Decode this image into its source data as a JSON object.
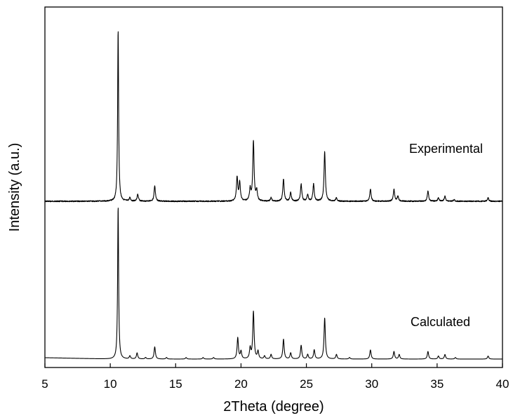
{
  "chart_data": {
    "type": "line",
    "title": "",
    "xlabel": "2Theta (degree)",
    "ylabel": "Intensity (a.u.)",
    "xlim": [
      5,
      40
    ],
    "xticks": [
      5,
      10,
      15,
      20,
      25,
      30,
      35,
      40
    ],
    "yticks_shown": false,
    "grid": false,
    "legend": "none",
    "series": [
      {
        "name": "Experimental",
        "color": "#000000",
        "stack_position": "top",
        "baseline": 0,
        "peaks": [
          {
            "x": 10.6,
            "y": 100
          },
          {
            "x": 11.5,
            "y": 2
          },
          {
            "x": 12.1,
            "y": 4
          },
          {
            "x": 13.4,
            "y": 9
          },
          {
            "x": 19.7,
            "y": 14
          },
          {
            "x": 19.9,
            "y": 11
          },
          {
            "x": 20.7,
            "y": 7
          },
          {
            "x": 20.95,
            "y": 35
          },
          {
            "x": 21.2,
            "y": 6
          },
          {
            "x": 22.3,
            "y": 2
          },
          {
            "x": 23.25,
            "y": 13
          },
          {
            "x": 23.8,
            "y": 5
          },
          {
            "x": 24.6,
            "y": 10
          },
          {
            "x": 25.1,
            "y": 4
          },
          {
            "x": 25.55,
            "y": 10
          },
          {
            "x": 26.4,
            "y": 29
          },
          {
            "x": 27.3,
            "y": 2
          },
          {
            "x": 29.9,
            "y": 7
          },
          {
            "x": 31.7,
            "y": 7
          },
          {
            "x": 32.0,
            "y": 3
          },
          {
            "x": 34.3,
            "y": 6
          },
          {
            "x": 35.1,
            "y": 2
          },
          {
            "x": 35.6,
            "y": 3
          },
          {
            "x": 36.3,
            "y": 1
          },
          {
            "x": 38.9,
            "y": 2
          }
        ]
      },
      {
        "name": "Calculated",
        "color": "#000000",
        "stack_position": "bottom",
        "baseline": 0,
        "peaks": [
          {
            "x": 10.6,
            "y": 100
          },
          {
            "x": 11.5,
            "y": 2
          },
          {
            "x": 12.05,
            "y": 4
          },
          {
            "x": 12.7,
            "y": 1
          },
          {
            "x": 13.4,
            "y": 8
          },
          {
            "x": 14.3,
            "y": 1
          },
          {
            "x": 15.8,
            "y": 1
          },
          {
            "x": 17.1,
            "y": 1
          },
          {
            "x": 17.9,
            "y": 1
          },
          {
            "x": 19.75,
            "y": 14
          },
          {
            "x": 20.0,
            "y": 5
          },
          {
            "x": 20.7,
            "y": 7
          },
          {
            "x": 20.95,
            "y": 31
          },
          {
            "x": 21.3,
            "y": 5
          },
          {
            "x": 21.8,
            "y": 2
          },
          {
            "x": 22.3,
            "y": 3
          },
          {
            "x": 23.25,
            "y": 13
          },
          {
            "x": 23.8,
            "y": 4
          },
          {
            "x": 24.6,
            "y": 9
          },
          {
            "x": 25.1,
            "y": 3
          },
          {
            "x": 25.6,
            "y": 6
          },
          {
            "x": 26.4,
            "y": 27
          },
          {
            "x": 27.3,
            "y": 3
          },
          {
            "x": 28.3,
            "y": 1
          },
          {
            "x": 29.9,
            "y": 6
          },
          {
            "x": 31.7,
            "y": 5
          },
          {
            "x": 32.1,
            "y": 3
          },
          {
            "x": 34.3,
            "y": 5
          },
          {
            "x": 35.1,
            "y": 2
          },
          {
            "x": 35.6,
            "y": 3
          },
          {
            "x": 36.4,
            "y": 1
          },
          {
            "x": 38.9,
            "y": 2
          }
        ]
      }
    ]
  }
}
